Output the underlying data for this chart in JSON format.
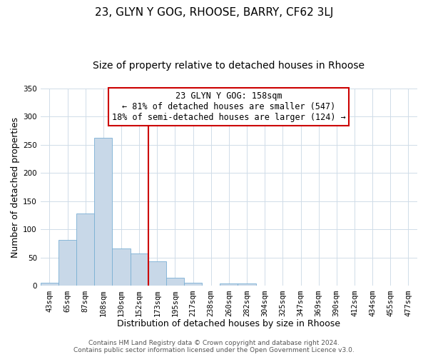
{
  "title": "23, GLYN Y GOG, RHOOSE, BARRY, CF62 3LJ",
  "subtitle": "Size of property relative to detached houses in Rhoose",
  "xlabel": "Distribution of detached houses by size in Rhoose",
  "ylabel": "Number of detached properties",
  "bar_labels": [
    "43sqm",
    "65sqm",
    "87sqm",
    "108sqm",
    "130sqm",
    "152sqm",
    "173sqm",
    "195sqm",
    "217sqm",
    "238sqm",
    "260sqm",
    "282sqm",
    "304sqm",
    "325sqm",
    "347sqm",
    "369sqm",
    "390sqm",
    "412sqm",
    "434sqm",
    "455sqm",
    "477sqm"
  ],
  "bar_values": [
    6,
    81,
    128,
    263,
    67,
    57,
    44,
    15,
    6,
    0,
    4,
    4,
    1,
    1,
    0,
    0,
    0,
    0,
    0,
    0,
    1
  ],
  "bar_color": "#c8d8e8",
  "bar_edge_color": "#7aafd4",
  "vline_x": 5.5,
  "vline_color": "#cc0000",
  "annotation_line1": "23 GLYN Y GOG: 158sqm",
  "annotation_line2": "← 81% of detached houses are smaller (547)",
  "annotation_line3": "18% of semi-detached houses are larger (124) →",
  "annotation_box_color": "#ffffff",
  "annotation_box_edge": "#cc0000",
  "ylim": [
    0,
    350
  ],
  "yticks": [
    0,
    50,
    100,
    150,
    200,
    250,
    300,
    350
  ],
  "footer_line1": "Contains HM Land Registry data © Crown copyright and database right 2024.",
  "footer_line2": "Contains public sector information licensed under the Open Government Licence v3.0.",
  "title_fontsize": 11,
  "subtitle_fontsize": 10,
  "axis_label_fontsize": 9,
  "tick_fontsize": 7.5,
  "annotation_fontsize": 8.5,
  "footer_fontsize": 6.5,
  "grid_color": "#d0dce8"
}
